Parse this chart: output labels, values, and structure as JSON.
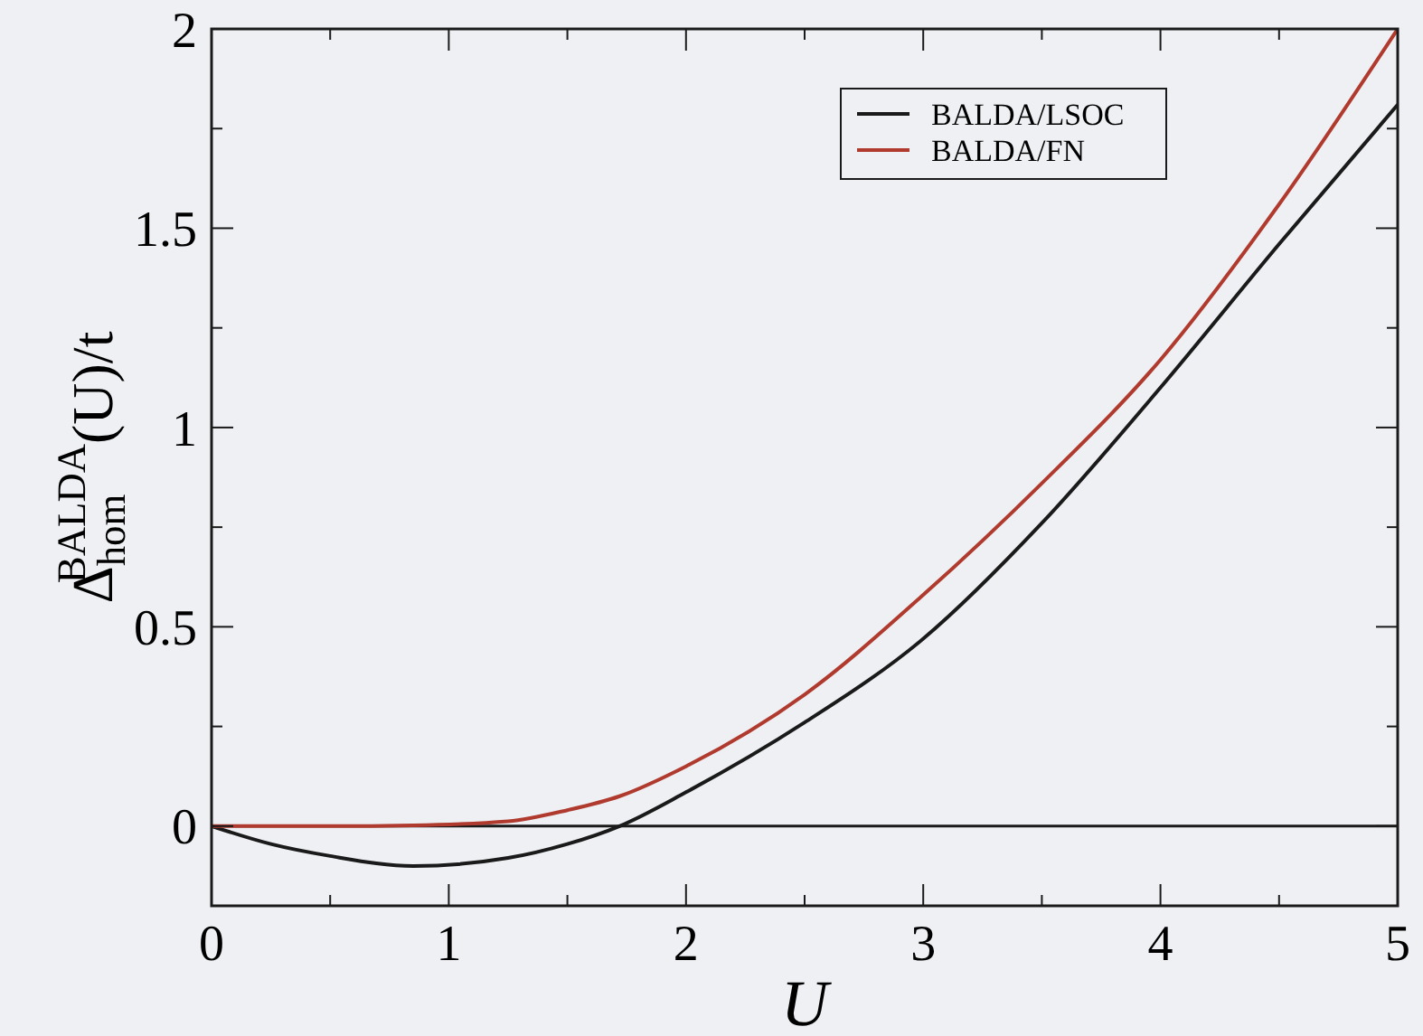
{
  "chart_data": {
    "type": "line",
    "xlabel": "U",
    "ylabel": "Δ$_{hom}$$^{BALDA}$(U)/t",
    "xlim": [
      0,
      5
    ],
    "ylim": [
      -0.2,
      2
    ],
    "xticks": [
      0,
      {
        "value": 0.5,
        "label": null
      },
      1,
      {
        "value": 1.5,
        "label": null
      },
      2,
      {
        "value": 2.5,
        "label": null
      },
      3,
      {
        "value": 3.5,
        "label": null
      },
      4,
      {
        "value": 4.5,
        "label": null
      },
      5
    ],
    "yticks": [
      0,
      {
        "value": 0.25,
        "label": null
      },
      0.5,
      {
        "value": 0.75,
        "label": null
      },
      1,
      {
        "value": 1.25,
        "label": null
      },
      1.5,
      {
        "value": 1.75,
        "label": null
      },
      2
    ],
    "x": [
      0,
      0.25,
      0.5,
      0.85,
      1.25,
      1.5,
      1.72,
      2,
      2.5,
      3,
      3.5,
      4,
      4.5,
      5
    ],
    "series": [
      {
        "name": "BALDA/LSOC",
        "color": "#1a1a1a",
        "values": [
          0,
          -0.045,
          -0.075,
          -0.1,
          -0.08,
          -0.045,
          0,
          0.085,
          0.26,
          0.47,
          0.76,
          1.1,
          1.46,
          1.81
        ]
      },
      {
        "name": "BALDA/FN",
        "color": "#b03a2e",
        "values": [
          0,
          0,
          0,
          0.002,
          0.012,
          0.04,
          0.075,
          0.15,
          0.33,
          0.58,
          0.86,
          1.17,
          1.56,
          2
        ]
      }
    ],
    "ref_lines": [
      {
        "axis": "y",
        "value": 0,
        "color": "#1a1a1a"
      }
    ],
    "legend": "top right",
    "grid": false,
    "line_style": "solid"
  }
}
